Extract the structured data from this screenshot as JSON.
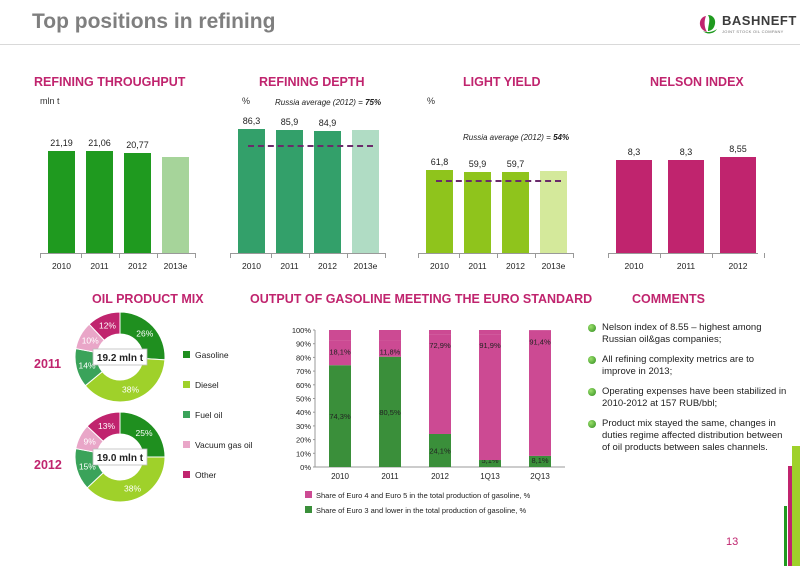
{
  "title": "Top positions in refining",
  "logo": {
    "name": "BASHNEFT",
    "tagline": "JOINT STOCK OIL COMPANY"
  },
  "page_number": "13",
  "colors": {
    "accent": "#c0246e",
    "green_dark": "#1f9a1f",
    "green_mid": "#35a06a",
    "green_lime": "#8fc41c",
    "magenta": "#c0246e"
  },
  "sections": {
    "refining_throughput": "REFINING THROUGHPUT",
    "refining_depth": "REFINING DEPTH",
    "light_yield": "LIGHT YIELD",
    "nelson_index": "NELSON INDEX",
    "oil_product_mix": "OIL PRODUCT MIX",
    "gasoline_output": "OUTPUT OF GASOLINE MEETING THE EURO STANDARD",
    "comments": "COMMENTS"
  },
  "chart_data": [
    {
      "type": "bar",
      "name": "refining_throughput",
      "unit": "mln t",
      "categories": [
        "2010",
        "2011",
        "2012",
        "2013e"
      ],
      "values": [
        21.19,
        21.06,
        20.77,
        20.0
      ],
      "value_labels": [
        "21,19",
        "21,06",
        "20,77",
        ""
      ],
      "ylim": [
        0,
        28
      ]
    },
    {
      "type": "bar",
      "name": "refining_depth",
      "unit": "%",
      "categories": [
        "2010",
        "2011",
        "2012",
        "2013e"
      ],
      "values": [
        86.3,
        85.9,
        84.9,
        85.5
      ],
      "value_labels": [
        "86,3",
        "85,9",
        "84,9",
        ""
      ],
      "reference_line": 75,
      "reference_label": "Russia average (2012) = ",
      "reference_value_label": "75%",
      "ylim": [
        0,
        94
      ]
    },
    {
      "type": "bar",
      "name": "light_yield",
      "unit": "%",
      "categories": [
        "2010",
        "2011",
        "2012",
        "2013e"
      ],
      "values": [
        61.8,
        59.9,
        59.7,
        60.5
      ],
      "value_labels": [
        "61,8",
        "59,9",
        "59,7",
        ""
      ],
      "reference_line": 54,
      "reference_label": "Russia average (2012) = ",
      "reference_value_label": "54%",
      "ylim": [
        0,
        100
      ]
    },
    {
      "type": "bar",
      "name": "nelson_index",
      "categories": [
        "2010",
        "2011",
        "2012"
      ],
      "values": [
        8.3,
        8.3,
        8.55
      ],
      "value_labels": [
        "8,3",
        "8,3",
        "8,55"
      ],
      "ylim": [
        0,
        12
      ]
    },
    {
      "type": "pie",
      "name": "oil_product_mix_2011",
      "year": "2011",
      "center_label": "19.2 mln t",
      "slices": [
        {
          "name": "Gasoline",
          "value": 26,
          "label": "26%",
          "color": "#1f8f1f"
        },
        {
          "name": "Diesel",
          "value": 38,
          "label": "38%",
          "color": "#9fd12a"
        },
        {
          "name": "Fuel oil",
          "value": 14,
          "label": "14%",
          "color": "#3aa35a"
        },
        {
          "name": "Vacuum gas oil",
          "value": 10,
          "label": "10%",
          "color": "#e9a6c8"
        },
        {
          "name": "Other",
          "value": 12,
          "label": "12%",
          "color": "#c0246e"
        }
      ]
    },
    {
      "type": "pie",
      "name": "oil_product_mix_2012",
      "year": "2012",
      "center_label": "19.0 mln t",
      "slices": [
        {
          "name": "Gasoline",
          "value": 25,
          "label": "25%",
          "color": "#1f8f1f"
        },
        {
          "name": "Diesel",
          "value": 38,
          "label": "38%",
          "color": "#9fd12a"
        },
        {
          "name": "Fuel oil",
          "value": 15,
          "label": "15%",
          "color": "#3aa35a"
        },
        {
          "name": "Vacuum gas oil",
          "value": 9,
          "label": "9%",
          "color": "#e9a6c8"
        },
        {
          "name": "Other",
          "value": 13,
          "label": "13%",
          "color": "#c0246e"
        }
      ]
    },
    {
      "type": "bar",
      "stacked": true,
      "name": "gasoline_euro_standard",
      "categories": [
        "2010",
        "2011",
        "2012",
        "1Q13",
        "2Q13"
      ],
      "y_ticks": [
        "0%",
        "10%",
        "20%",
        "30%",
        "40%",
        "50%",
        "60%",
        "70%",
        "80%",
        "90%",
        "100%"
      ],
      "series": [
        {
          "name": "Share of Euro 3 and lower in the total production of gasoline, %",
          "values": [
            74.3,
            80.5,
            24.1,
            5.1,
            8.1
          ],
          "labels": [
            "74,3%",
            "80,5%",
            "24,1%",
            "5,1%",
            "8,1%"
          ],
          "color": "#3a8f3a"
        },
        {
          "name": "Share of Euro 4 and Euro 5 in the total production of gasoline, %",
          "values": [
            18.1,
            11.8,
            72.9,
            91.9,
            91.4
          ],
          "labels": [
            "18,1%",
            "11,8%",
            "72,9%",
            "91,9%",
            "91,4%"
          ],
          "color": "#cc4a93"
        }
      ],
      "ylim": [
        0,
        100
      ]
    }
  ],
  "comments": [
    "Nelson index of 8.55 – highest among Russian oil&gas companies;",
    "All refining complexity metrics are to improve in 2013;",
    "Operating expenses have been stabilized in 2010-2012 at 157 RUB/bbl;",
    "Product mix stayed the same, changes in duties regime affected distribution between of oil products between sales channels."
  ]
}
